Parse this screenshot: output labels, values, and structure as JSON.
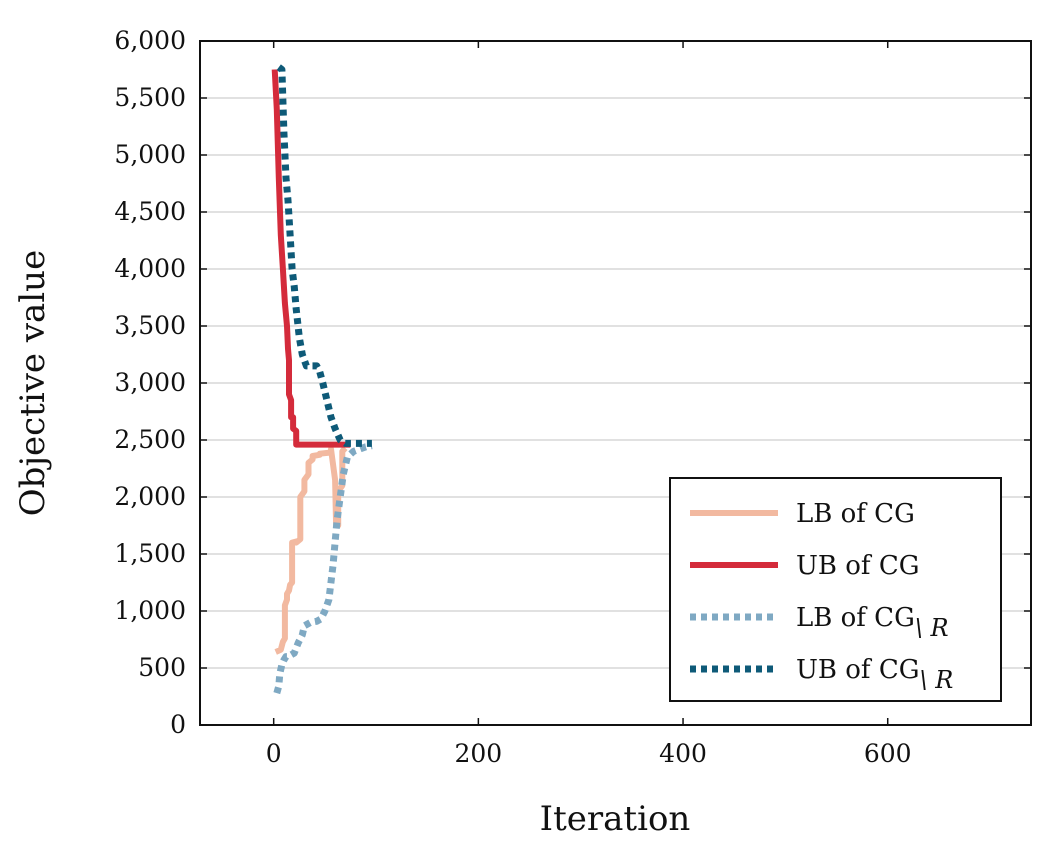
{
  "chart_data": {
    "type": "line",
    "xlabel": "Iteration",
    "ylabel": "Objective value",
    "xlim": [
      -72,
      740
    ],
    "ylim": [
      0,
      6000
    ],
    "grid": "horizontal",
    "legend_position": "bottom-right",
    "x_ticks": [
      0,
      200,
      400,
      600
    ],
    "x_tick_labels": [
      "0",
      "200",
      "400",
      "600"
    ],
    "y_ticks": [
      0,
      500,
      1000,
      1500,
      2000,
      2500,
      3000,
      3500,
      4000,
      4500,
      5000,
      5500,
      6000
    ],
    "y_tick_labels": [
      "0",
      "500",
      "1,000",
      "1,500",
      "2,000",
      "2,500",
      "3,000",
      "3,500",
      "4,000",
      "4,500",
      "5,000",
      "5,500",
      "6,000"
    ],
    "series": [
      {
        "name": "LB of CG",
        "label_main": "LB of CG",
        "label_sub": "",
        "color": "#f2b9a0",
        "style": "solid",
        "x": [
          2,
          7,
          9,
          11,
          11,
          13,
          13,
          15,
          16,
          18,
          18,
          22,
          22,
          26,
          26,
          30,
          30,
          34,
          34,
          38,
          38,
          45,
          45,
          56,
          56,
          60,
          61,
          63,
          63,
          67,
          67,
          70
        ],
        "y": [
          640,
          660,
          730,
          760,
          1050,
          1100,
          1150,
          1180,
          1230,
          1250,
          1600,
          1610,
          1600,
          1630,
          2000,
          2050,
          2150,
          2200,
          2300,
          2330,
          2360,
          2370,
          2380,
          2390,
          2420,
          2150,
          1750,
          1750,
          2050,
          2100,
          2400,
          2430
        ]
      },
      {
        "name": "UB of CG",
        "label_main": "UB of CG",
        "label_sub": "",
        "color": "#d42b3b",
        "style": "solid",
        "x": [
          1,
          3,
          5,
          7,
          9,
          11,
          13,
          14,
          15,
          15,
          17,
          17,
          19,
          19,
          22,
          22,
          40,
          60,
          75
        ],
        "y": [
          5750,
          5400,
          4800,
          4300,
          4000,
          3700,
          3500,
          3300,
          3200,
          2900,
          2850,
          2700,
          2700,
          2600,
          2580,
          2460,
          2460,
          2460,
          2460
        ]
      },
      {
        "name": "LB of CG\\R",
        "label_main": "LB of CG",
        "label_sub": "\\ R",
        "color": "#7fa9c3",
        "style": "dotted",
        "x": [
          3,
          5,
          6,
          8,
          10,
          12,
          14,
          16,
          18,
          20,
          24,
          28,
          30,
          36,
          42,
          46,
          50,
          54,
          58,
          62,
          65,
          68,
          72,
          78,
          84,
          90,
          96
        ],
        "y": [
          280,
          340,
          450,
          530,
          570,
          600,
          600,
          610,
          620,
          630,
          720,
          790,
          870,
          900,
          910,
          930,
          1000,
          1100,
          1400,
          1800,
          2000,
          2200,
          2350,
          2400,
          2420,
          2440,
          2450
        ]
      },
      {
        "name": "UB of CG\\R",
        "label_main": "UB of CG",
        "label_sub": "\\ R",
        "color": "#0e5a78",
        "style": "dotted",
        "x": [
          5,
          8,
          10,
          12,
          14,
          16,
          18,
          20,
          22,
          25,
          28,
          32,
          38,
          42,
          45,
          48,
          52,
          56,
          60,
          65,
          70,
          80,
          90,
          96
        ],
        "y": [
          5770,
          5750,
          5200,
          4800,
          4600,
          4300,
          4000,
          3850,
          3650,
          3400,
          3250,
          3150,
          3150,
          3150,
          3100,
          3000,
          2850,
          2700,
          2600,
          2500,
          2470,
          2470,
          2470,
          2470
        ]
      }
    ]
  }
}
